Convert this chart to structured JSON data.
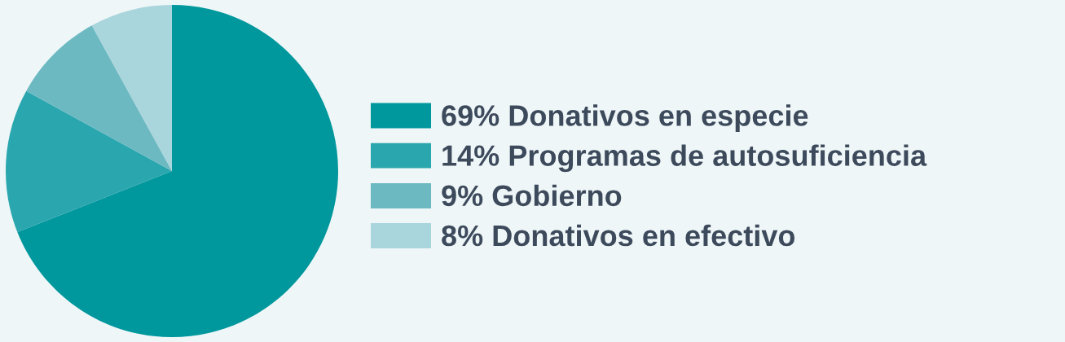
{
  "chart_data": {
    "type": "pie",
    "categories": [
      "Donativos en especie",
      "Programas de autosuficiencia",
      "Gobierno",
      "Donativos en efectivo"
    ],
    "values": [
      69,
      14,
      9,
      8
    ],
    "colors": [
      "#00979d",
      "#2aa6ae",
      "#6cb9c2",
      "#a9d5dc"
    ],
    "value_labels": [
      "69%",
      "14%",
      "9%",
      "8%"
    ],
    "legend": "right"
  }
}
